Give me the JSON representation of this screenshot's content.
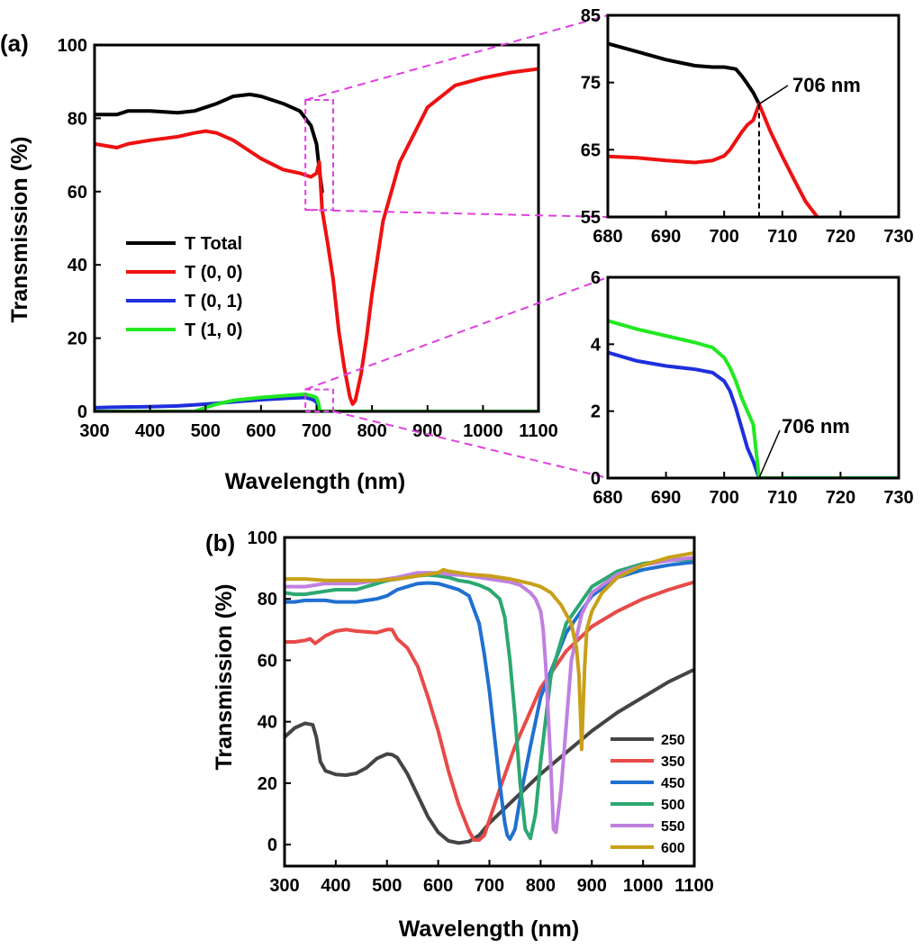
{
  "panel_labels": [
    "(a)",
    "(b)"
  ],
  "colors": {
    "total": "#000000",
    "t00": "#ee1111",
    "t01": "#1f2fdd",
    "t10": "#22e822",
    "zoom_box": "#e040e0",
    "b250": "#444444",
    "b350": "#e84a4a",
    "b450": "#2070d0",
    "b500": "#2ca870",
    "b550": "#c080e0",
    "b600": "#c8a018"
  },
  "chart_data": [
    {
      "type": "line",
      "panel": "(a) main",
      "xlabel": "Wavelength (nm)",
      "ylabel": "Transmission (%)",
      "xlim": [
        300,
        1100
      ],
      "ylim": [
        0,
        100
      ],
      "xticks": [
        300,
        400,
        500,
        600,
        700,
        800,
        900,
        1000,
        1100
      ],
      "yticks": [
        0,
        20,
        40,
        60,
        80,
        100
      ],
      "legend_position": "center-left",
      "series": [
        {
          "name": "T Total",
          "color_key": "total",
          "x": [
            300,
            320,
            340,
            360,
            400,
            450,
            480,
            500,
            520,
            550,
            580,
            600,
            640,
            670,
            690,
            700,
            705,
            710
          ],
          "y": [
            81,
            81,
            81,
            82,
            82,
            81.5,
            82,
            83,
            84,
            86,
            86.5,
            86,
            84,
            82,
            78,
            73,
            66,
            60
          ]
        },
        {
          "name": "T (0, 0)",
          "color_key": "t00",
          "x": [
            300,
            320,
            340,
            360,
            400,
            450,
            480,
            500,
            520,
            550,
            580,
            600,
            640,
            670,
            690,
            700,
            705,
            710,
            720,
            730,
            740,
            750,
            760,
            765,
            770,
            780,
            790,
            800,
            820,
            850,
            900,
            950,
            1000,
            1050,
            1100
          ],
          "y": [
            73,
            72.5,
            72,
            73,
            74,
            75,
            76,
            76.5,
            76,
            74,
            71,
            69,
            66,
            65,
            64,
            65,
            68,
            55,
            46,
            36,
            22,
            12,
            4,
            2,
            3,
            10,
            20,
            32,
            52,
            68,
            83,
            89,
            91,
            92.5,
            93.5
          ]
        },
        {
          "name": "T (0, 1)",
          "color_key": "t01",
          "x": [
            300,
            350,
            400,
            450,
            480,
            500,
            520,
            550,
            600,
            650,
            680,
            690,
            695,
            700,
            703,
            706,
            720,
            800,
            900,
            1000,
            1100
          ],
          "y": [
            1,
            1.2,
            1.3,
            1.5,
            1.8,
            2,
            2.2,
            2.6,
            3.2,
            3.6,
            3.8,
            3.4,
            3.1,
            2.5,
            1.5,
            0,
            0,
            0,
            0,
            0,
            0
          ]
        },
        {
          "name": "T (1, 0)",
          "color_key": "t10",
          "x": [
            300,
            400,
            480,
            500,
            520,
            550,
            600,
            650,
            680,
            690,
            695,
            700,
            704,
            706,
            720,
            800,
            900,
            1000,
            1100
          ],
          "y": [
            0,
            0,
            0,
            1,
            2,
            3,
            3.8,
            4.4,
            4.7,
            4.3,
            4.1,
            3.7,
            2,
            0,
            0,
            0,
            0,
            0,
            0
          ]
        }
      ]
    },
    {
      "type": "line",
      "panel": "(a) inset top",
      "xlim": [
        680,
        730
      ],
      "ylim": [
        55,
        85
      ],
      "xticks": [
        680,
        690,
        700,
        710,
        720,
        730
      ],
      "yticks": [
        55,
        65,
        75,
        85
      ],
      "annotation": {
        "text": "706 nm",
        "x": 706,
        "y": 71.8
      },
      "series": [
        {
          "name": "T Total",
          "color_key": "total",
          "x": [
            680,
            685,
            690,
            695,
            698,
            700,
            702,
            703,
            704,
            705,
            706
          ],
          "y": [
            80.8,
            79.6,
            78.4,
            77.5,
            77.3,
            77.3,
            77,
            76,
            74.8,
            73.5,
            71.8
          ]
        },
        {
          "name": "T (0, 0)",
          "color_key": "t00",
          "x": [
            680,
            685,
            690,
            695,
            698,
            700,
            701,
            702,
            703,
            704,
            705,
            706,
            708,
            710,
            712,
            714,
            716
          ],
          "y": [
            64,
            63.8,
            63.4,
            63.1,
            63.4,
            64.1,
            65,
            66.3,
            67.6,
            68.7,
            69.4,
            71.8,
            67.6,
            64,
            60.6,
            57.3,
            55
          ]
        }
      ]
    },
    {
      "type": "line",
      "panel": "(a) inset bottom",
      "xlim": [
        680,
        730
      ],
      "ylim": [
        0,
        6
      ],
      "xticks": [
        680,
        690,
        700,
        710,
        720,
        730
      ],
      "yticks": [
        0,
        2,
        4,
        6
      ],
      "annotation": {
        "text": "706 nm",
        "x": 706,
        "y": 0
      },
      "series": [
        {
          "name": "T (0, 1)",
          "color_key": "t01",
          "x": [
            680,
            685,
            690,
            695,
            698,
            700,
            701,
            702,
            703,
            704,
            705,
            706
          ],
          "y": [
            3.75,
            3.5,
            3.35,
            3.25,
            3.15,
            2.9,
            2.6,
            2.1,
            1.5,
            0.9,
            0.5,
            0
          ]
        },
        {
          "name": "T (1, 0)",
          "color_key": "t10",
          "x": [
            680,
            685,
            690,
            695,
            698,
            700,
            701,
            702,
            703,
            704,
            705,
            705.5,
            706,
            710,
            720,
            730
          ],
          "y": [
            4.7,
            4.45,
            4.25,
            4.05,
            3.9,
            3.6,
            3.3,
            2.9,
            2.4,
            2,
            1.6,
            0.8,
            0,
            0,
            0,
            0
          ]
        }
      ]
    },
    {
      "type": "line",
      "panel": "(b)",
      "xlabel": "Wavelength (nm)",
      "ylabel": "Transmission (%)",
      "xlim": [
        300,
        1100
      ],
      "ylim": [
        -7,
        100
      ],
      "xticks": [
        300,
        400,
        500,
        600,
        700,
        800,
        900,
        1000,
        1100
      ],
      "yticks": [
        0,
        20,
        40,
        60,
        80,
        100
      ],
      "legend_position": "lower-right",
      "series": [
        {
          "name": "250",
          "color_key": "b250",
          "x": [
            300,
            320,
            340,
            355,
            362,
            370,
            380,
            400,
            420,
            440,
            460,
            480,
            500,
            510,
            520,
            540,
            560,
            580,
            600,
            620,
            640,
            660,
            680,
            700,
            750,
            800,
            850,
            900,
            950,
            1000,
            1050,
            1100
          ],
          "y": [
            35,
            38,
            39.5,
            39,
            35,
            27,
            24,
            22.8,
            22.6,
            23.2,
            25,
            28,
            29.5,
            29.3,
            28.3,
            23,
            16,
            9,
            4,
            1.2,
            0.5,
            1,
            3,
            7,
            15,
            23,
            30,
            37,
            43,
            48,
            53,
            57
          ]
        },
        {
          "name": "350",
          "color_key": "b350",
          "x": [
            300,
            320,
            340,
            350,
            360,
            380,
            400,
            420,
            440,
            480,
            500,
            510,
            520,
            540,
            560,
            580,
            600,
            620,
            640,
            660,
            670,
            680,
            690,
            700,
            720,
            750,
            800,
            850,
            900,
            950,
            1000,
            1050,
            1100
          ],
          "y": [
            66,
            66,
            66.5,
            67,
            65.5,
            68,
            69.5,
            70,
            69.5,
            69,
            70,
            70,
            67,
            64,
            58,
            48,
            37,
            24,
            13,
            4.5,
            1.5,
            1.5,
            3,
            8,
            18,
            32,
            51,
            63,
            71,
            76,
            80,
            83,
            85.5
          ]
        },
        {
          "name": "450",
          "color_key": "b450",
          "x": [
            300,
            320,
            340,
            360,
            380,
            400,
            420,
            440,
            460,
            480,
            500,
            520,
            540,
            560,
            580,
            600,
            620,
            640,
            660,
            680,
            690,
            700,
            710,
            720,
            730,
            735,
            740,
            750,
            760,
            780,
            800,
            850,
            900,
            950,
            1000,
            1050,
            1100
          ],
          "y": [
            79,
            79,
            79.5,
            79.5,
            79.5,
            79,
            79,
            79,
            79.5,
            80,
            81,
            83,
            84,
            85,
            85.2,
            85,
            84,
            83,
            81,
            72,
            62,
            50,
            35,
            20,
            7,
            3,
            1.8,
            5,
            15,
            32,
            48,
            69,
            81,
            87,
            89.5,
            91,
            92
          ]
        },
        {
          "name": "500",
          "color_key": "b500",
          "x": [
            300,
            320,
            340,
            360,
            380,
            400,
            420,
            440,
            460,
            480,
            500,
            520,
            540,
            560,
            580,
            600,
            620,
            640,
            660,
            680,
            700,
            720,
            730,
            740,
            750,
            760,
            770,
            780,
            790,
            800,
            820,
            850,
            900,
            950,
            1000,
            1050,
            1100
          ],
          "y": [
            82,
            81.5,
            81.5,
            82,
            82.5,
            83,
            83,
            83,
            84,
            85,
            86,
            86.5,
            87,
            87.5,
            87.8,
            87.5,
            87,
            86,
            85.5,
            84.5,
            83,
            80,
            74,
            60,
            42,
            20,
            5,
            2,
            10,
            27,
            55,
            72,
            84,
            89,
            91.5,
            92.5,
            93
          ]
        },
        {
          "name": "550",
          "color_key": "b550",
          "x": [
            300,
            320,
            340,
            360,
            380,
            400,
            440,
            480,
            520,
            560,
            580,
            600,
            620,
            640,
            660,
            680,
            700,
            720,
            740,
            760,
            780,
            790,
            800,
            805,
            810,
            815,
            820,
            825,
            830,
            840,
            860,
            880,
            900,
            950,
            1000,
            1050,
            1100
          ],
          "y": [
            84,
            84,
            84,
            84.5,
            85,
            85,
            85,
            86,
            87,
            88.5,
            88.5,
            88.5,
            88,
            87.8,
            87.5,
            87,
            86.5,
            86,
            85.5,
            84.5,
            82,
            80,
            76,
            70,
            58,
            42,
            25,
            5,
            4,
            18,
            60,
            75,
            82,
            88,
            91,
            92.5,
            93.5
          ]
        },
        {
          "name": "600",
          "color_key": "b600",
          "x": [
            300,
            340,
            380,
            400,
            440,
            480,
            520,
            560,
            600,
            610,
            620,
            640,
            660,
            700,
            740,
            780,
            800,
            820,
            840,
            850,
            860,
            865,
            870,
            875,
            878,
            880,
            883,
            886,
            890,
            900,
            920,
            950,
            1000,
            1050,
            1100
          ],
          "y": [
            86.5,
            86.5,
            86,
            86,
            86,
            86,
            86.5,
            87.5,
            88.5,
            89.5,
            89,
            88.5,
            88,
            87.5,
            86.5,
            85,
            84,
            82,
            78,
            75,
            72,
            68,
            64,
            55,
            42,
            31,
            45,
            58,
            70,
            76,
            82,
            87,
            91,
            93.5,
            95
          ]
        }
      ]
    }
  ]
}
